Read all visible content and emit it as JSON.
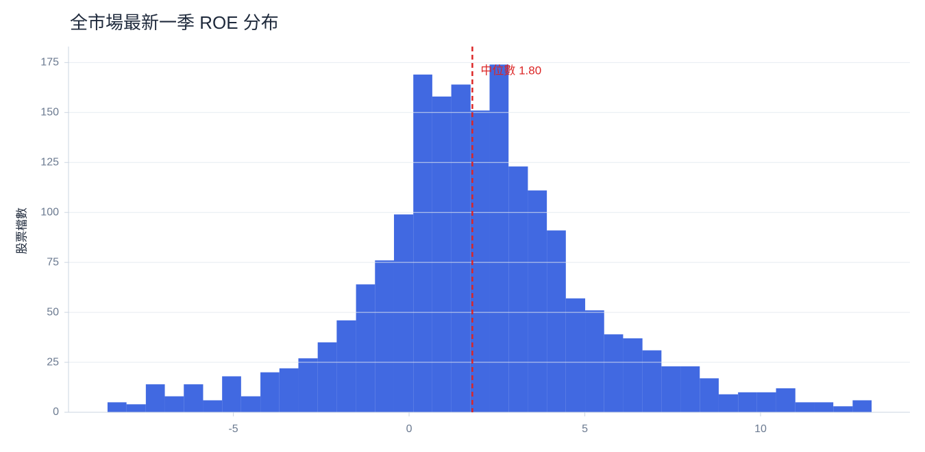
{
  "chart_data": {
    "type": "histogram",
    "title": "全市場最新一季 ROE 分布",
    "ylabel": "股票檔數",
    "color": "#4169e1",
    "bins": [
      -8.58,
      -8.04,
      -7.49,
      -6.95,
      -6.41,
      -5.86,
      -5.32,
      -4.78,
      -4.23,
      -3.69,
      -3.15,
      -2.6,
      -2.06,
      -1.51,
      -0.97,
      -0.43,
      0.12,
      0.66,
      1.2,
      1.75,
      2.29,
      2.83,
      3.38,
      3.92,
      4.46,
      5.01,
      5.55,
      6.09,
      6.64,
      7.18,
      7.73,
      8.27,
      8.81,
      9.36,
      9.9,
      10.44,
      10.99,
      11.53,
      12.07,
      12.62,
      13.16
    ],
    "counts": [
      5,
      4,
      14,
      8,
      14,
      6,
      18,
      8,
      20,
      22,
      27,
      35,
      46,
      64,
      76,
      99,
      169,
      158,
      164,
      151,
      174,
      123,
      111,
      91,
      57,
      51,
      39,
      37,
      31,
      23,
      23,
      17,
      9,
      10,
      10,
      12,
      5,
      5,
      3,
      6
    ],
    "xlim": [
      -9.69,
      14.25
    ],
    "xticks": [
      -5,
      0,
      5,
      10
    ],
    "ylim": [
      0,
      183
    ],
    "yticks": [
      0,
      25,
      50,
      75,
      100,
      125,
      150,
      175
    ],
    "grid": true,
    "median": {
      "value": 1.8,
      "label": "中位數 1.80",
      "color": "#dc2626"
    }
  }
}
